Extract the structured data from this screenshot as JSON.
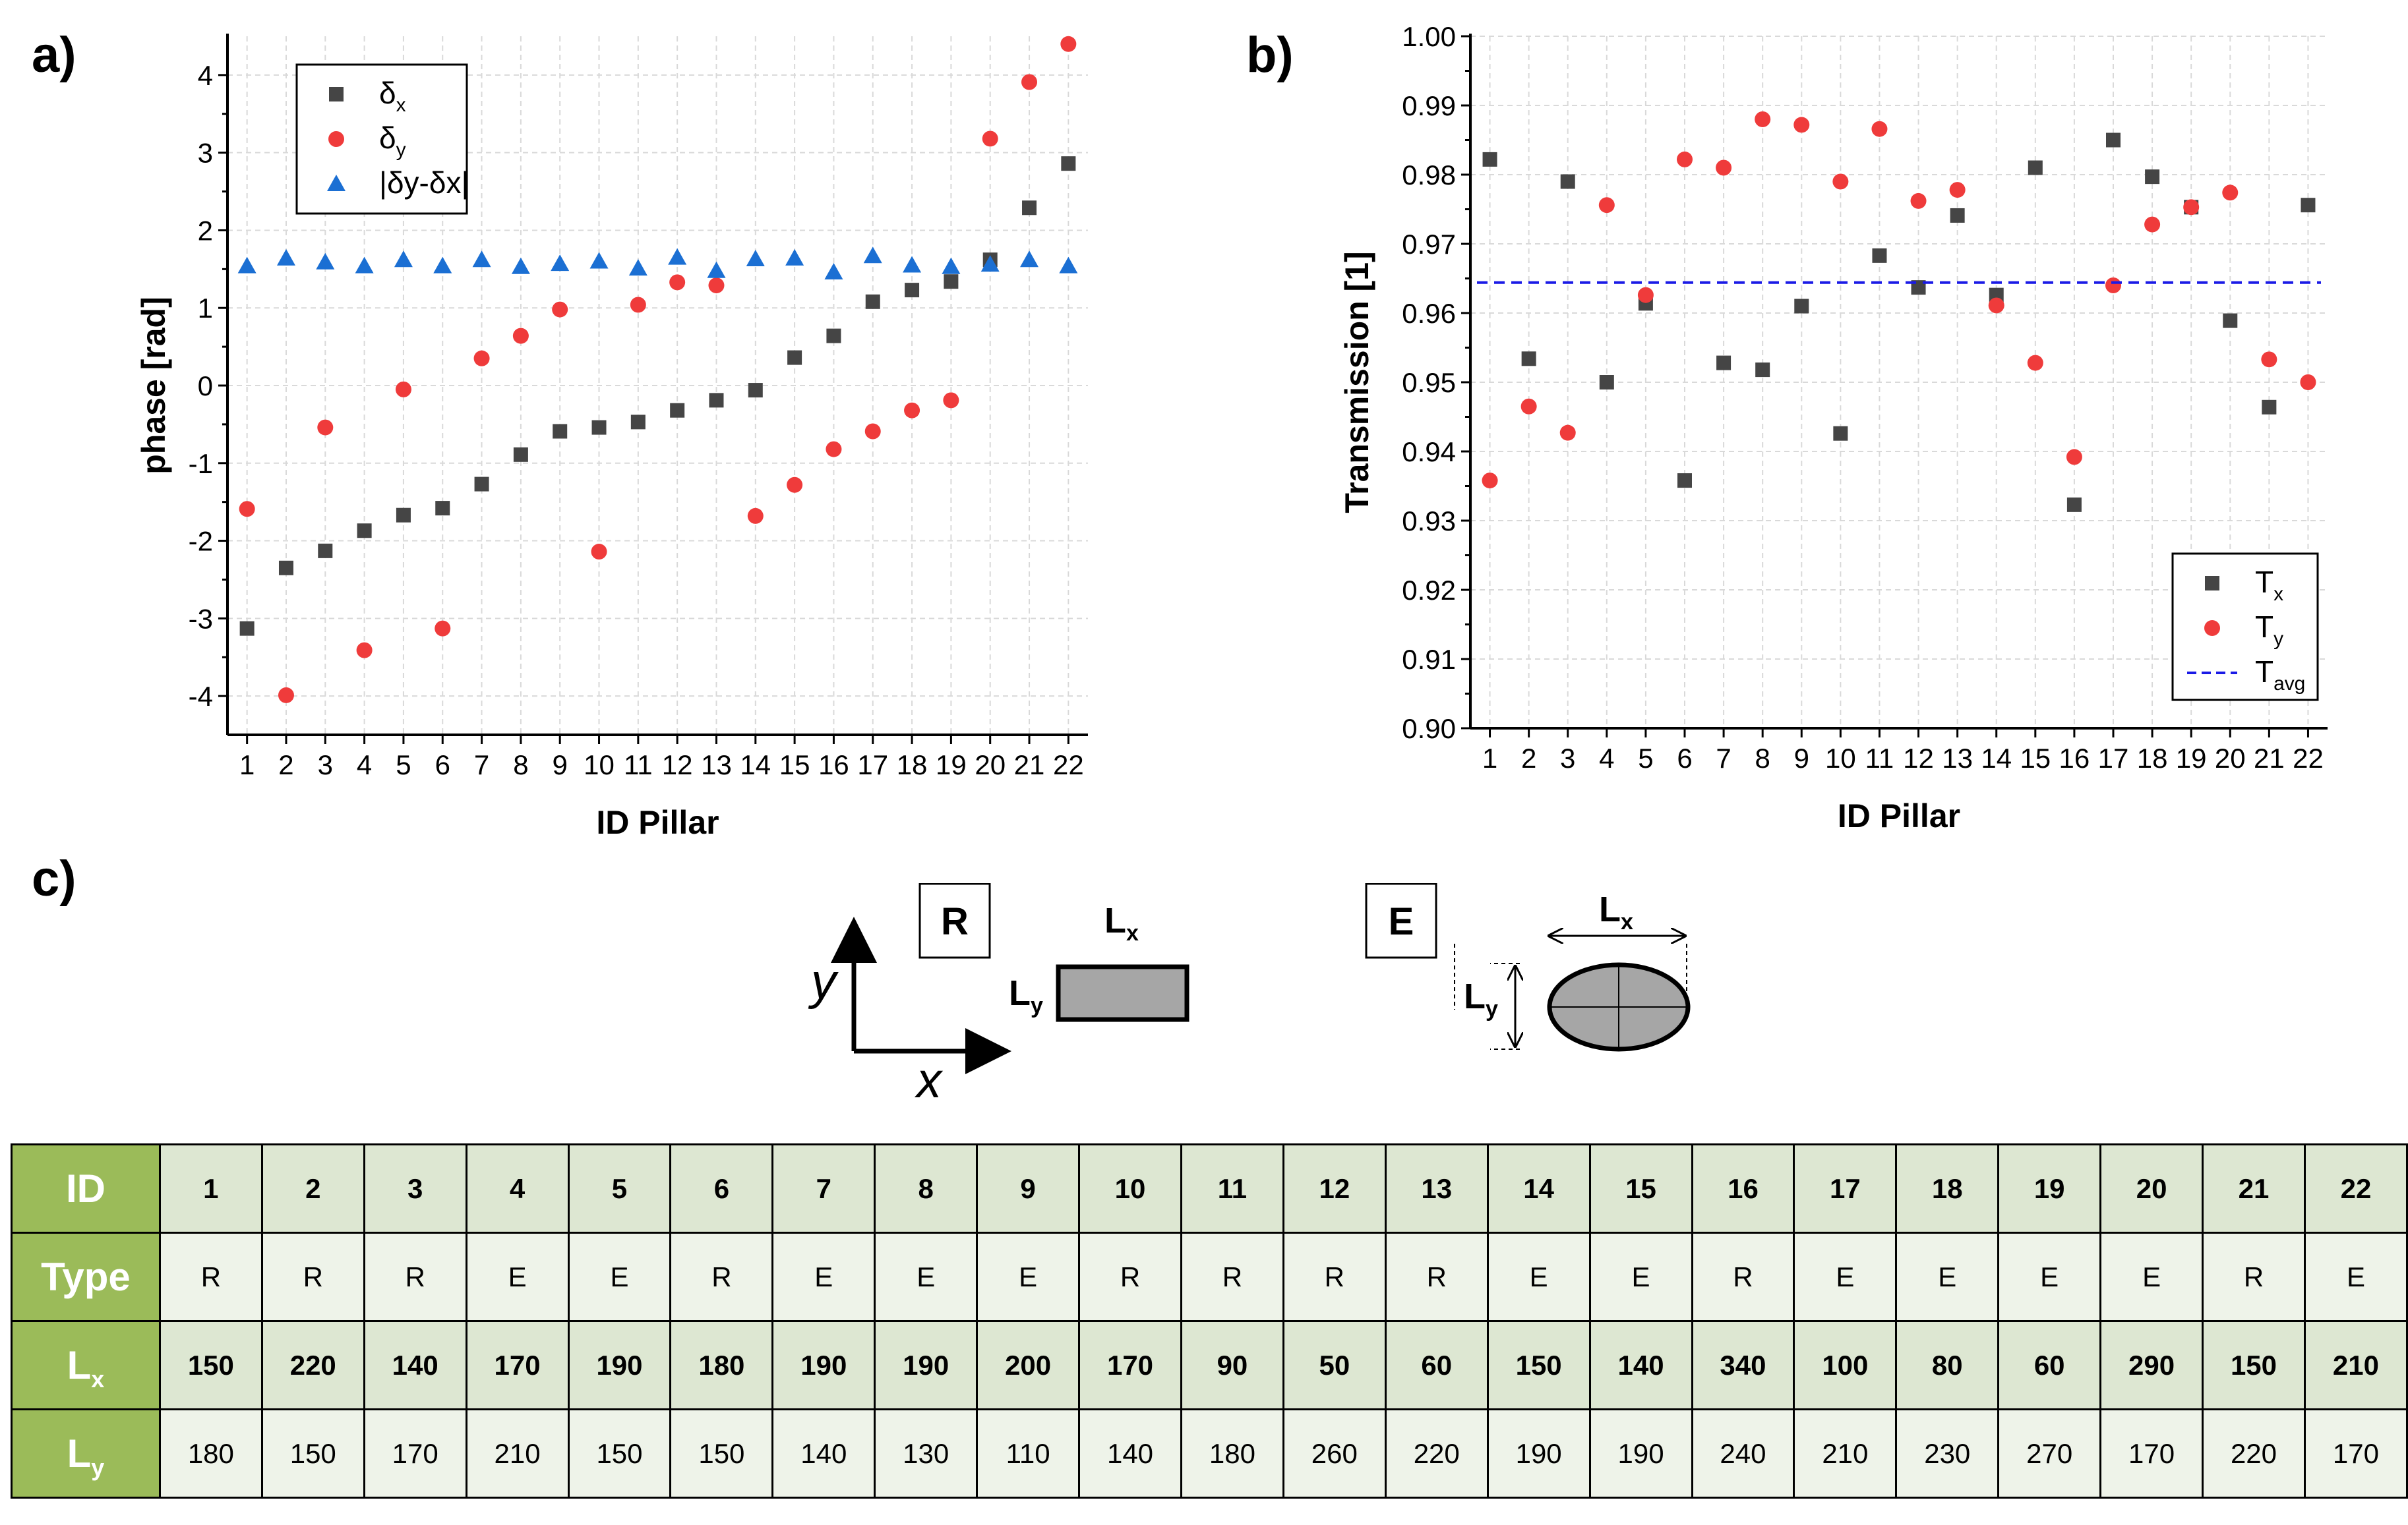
{
  "labels": {
    "a": "a)",
    "b": "b)",
    "c": "c)"
  },
  "chart_data": [
    {
      "type": "scatter",
      "panel": "a",
      "xlabel": "ID Pillar",
      "ylabel": "phase [rad]",
      "x": [
        1,
        2,
        3,
        4,
        5,
        6,
        7,
        8,
        9,
        10,
        11,
        12,
        13,
        14,
        15,
        16,
        17,
        18,
        19,
        20,
        21,
        22
      ],
      "xlim": [
        0.5,
        22.5
      ],
      "ylim": [
        -4.5,
        4.5
      ],
      "yticks": [
        -4,
        -3,
        -2,
        -1,
        0,
        1,
        2,
        3,
        4
      ],
      "grid": true,
      "legend_position": "top-left",
      "series": [
        {
          "name": "δx",
          "sym": "δ",
          "sub": "x",
          "marker": "square",
          "color": "#454545",
          "values": [
            -3.13,
            -2.35,
            -2.13,
            -1.87,
            -1.67,
            -1.58,
            -1.27,
            -0.89,
            -0.59,
            -0.54,
            -0.47,
            -0.32,
            -0.19,
            -0.06,
            0.36,
            0.64,
            1.08,
            1.23,
            1.34,
            1.62,
            2.29,
            2.86
          ]
        },
        {
          "name": "δy",
          "sym": "δ",
          "sub": "y",
          "marker": "circle",
          "color": "#ef3b3b",
          "values": [
            -1.59,
            -3.99,
            -0.54,
            -3.41,
            -0.05,
            -3.13,
            0.35,
            0.64,
            0.98,
            -2.14,
            1.04,
            1.33,
            1.29,
            -1.68,
            -1.28,
            -0.82,
            -0.59,
            -0.32,
            -0.19,
            3.18,
            3.91,
            4.4
          ]
        },
        {
          "name": "|δy-δx|",
          "marker": "triangle",
          "color": "#1b6fd3",
          "values": [
            1.54,
            1.64,
            1.59,
            1.54,
            1.62,
            1.54,
            1.62,
            1.53,
            1.57,
            1.6,
            1.51,
            1.65,
            1.48,
            1.63,
            1.64,
            1.46,
            1.67,
            1.55,
            1.53,
            1.56,
            1.62,
            1.54
          ]
        }
      ]
    },
    {
      "type": "scatter",
      "panel": "b",
      "xlabel": "ID Pillar",
      "ylabel": "Transmission  [1]",
      "x": [
        1,
        2,
        3,
        4,
        5,
        6,
        7,
        8,
        9,
        10,
        11,
        12,
        13,
        14,
        15,
        16,
        17,
        18,
        19,
        20,
        21,
        22
      ],
      "xlim": [
        0.5,
        22.5
      ],
      "ylim": [
        0.9,
        1.0
      ],
      "yticks": [
        "0.90",
        "0.91",
        "0.92",
        "0.93",
        "0.94",
        "0.95",
        "0.96",
        "0.97",
        "0.98",
        "0.99",
        "1.00"
      ],
      "grid": true,
      "legend_position": "bottom-right",
      "series": [
        {
          "name": "Tx",
          "sym": "T",
          "sub": "x",
          "marker": "square",
          "color": "#454545",
          "values": [
            0.9822,
            0.9534,
            0.979,
            0.95,
            0.9614,
            0.9358,
            0.9528,
            0.9518,
            0.961,
            0.9426,
            0.9683,
            0.9637,
            0.9741,
            0.9626,
            0.981,
            0.9323,
            0.985,
            0.9797,
            0.9753,
            0.9589,
            0.9464,
            0.9756
          ]
        },
        {
          "name": "Ty",
          "sym": "T",
          "sub": "y",
          "marker": "circle",
          "color": "#ef3b3b",
          "values": [
            0.9358,
            0.9465,
            0.9427,
            0.9756,
            0.9626,
            0.9822,
            0.981,
            0.988,
            0.9872,
            0.979,
            0.9866,
            0.9762,
            0.9778,
            0.9611,
            0.9528,
            0.9392,
            0.964,
            0.9728,
            0.9753,
            0.9774,
            0.9533,
            0.95
          ]
        },
        {
          "name": "Tavg",
          "sym": "T",
          "sub": "avg",
          "marker": "dashed-line",
          "color": "#1a1ae6",
          "value": 0.9644
        }
      ]
    }
  ],
  "schematic": {
    "axis_y": "y",
    "axis_x": "x",
    "rect_tag": "R",
    "ellipse_tag": "E",
    "lx": {
      "sym": "L",
      "sub": "x"
    },
    "ly": {
      "sym": "L",
      "sub": "y"
    }
  },
  "table": {
    "header_id": "ID",
    "header_type": "Type",
    "header_lx": {
      "sym": "L",
      "sub": "x"
    },
    "header_ly": {
      "sym": "L",
      "sub": "y"
    },
    "ids": [
      "1",
      "2",
      "3",
      "4",
      "5",
      "6",
      "7",
      "8",
      "9",
      "10",
      "11",
      "12",
      "13",
      "14",
      "15",
      "16",
      "17",
      "18",
      "19",
      "20",
      "21",
      "22"
    ],
    "types": [
      "R",
      "R",
      "R",
      "E",
      "E",
      "R",
      "E",
      "E",
      "E",
      "R",
      "R",
      "R",
      "R",
      "E",
      "E",
      "R",
      "E",
      "E",
      "E",
      "E",
      "R",
      "E"
    ],
    "lx": [
      "150",
      "220",
      "140",
      "170",
      "190",
      "180",
      "190",
      "190",
      "200",
      "170",
      "90",
      "50",
      "60",
      "150",
      "140",
      "340",
      "100",
      "80",
      "60",
      "290",
      "150",
      "210"
    ],
    "ly": [
      "180",
      "150",
      "170",
      "210",
      "150",
      "150",
      "140",
      "130",
      "110",
      "140",
      "180",
      "260",
      "220",
      "190",
      "190",
      "240",
      "210",
      "230",
      "270",
      "170",
      "220",
      "170"
    ]
  }
}
